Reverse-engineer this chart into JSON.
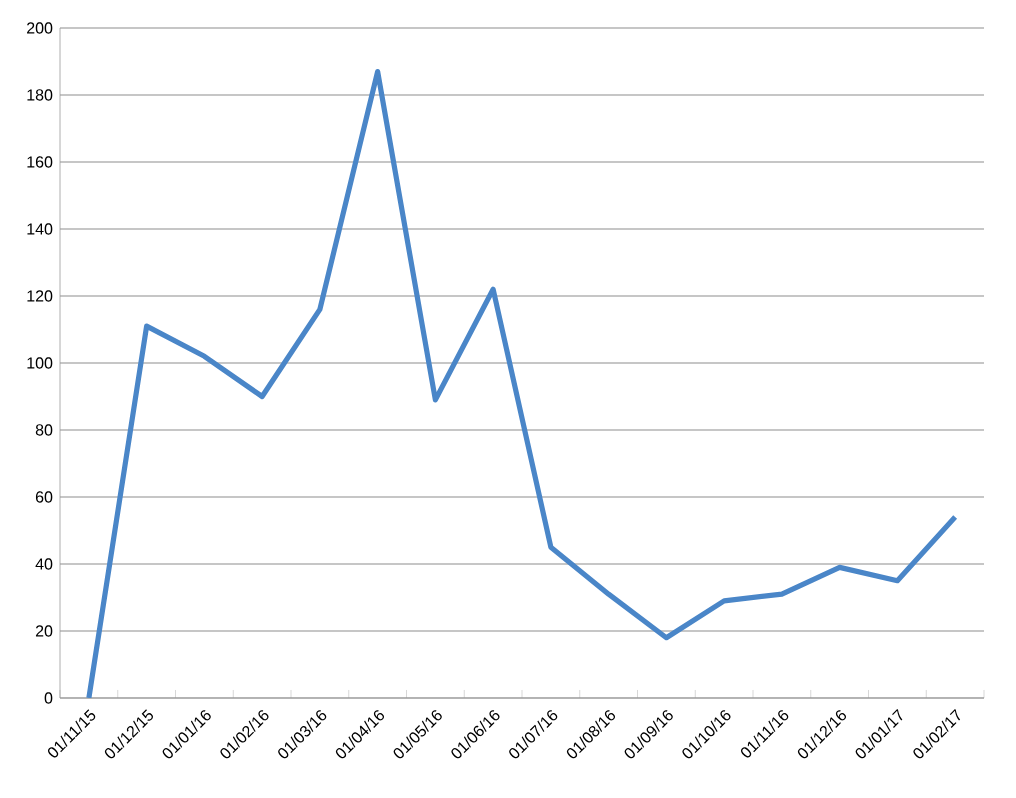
{
  "chart_data": {
    "type": "line",
    "categories": [
      "01/11/15",
      "01/12/15",
      "01/01/16",
      "01/02/16",
      "01/03/16",
      "01/04/16",
      "01/05/16",
      "01/06/16",
      "01/07/16",
      "01/08/16",
      "01/09/16",
      "01/10/16",
      "01/11/16",
      "01/12/16",
      "01/01/17",
      "01/02/17"
    ],
    "series": [
      {
        "color": "#4a86c8",
        "values": [
          0,
          111,
          102,
          90,
          116,
          187,
          89,
          122,
          45,
          31,
          18,
          29,
          31,
          39,
          35,
          54
        ]
      }
    ],
    "ylim": [
      0,
      200
    ],
    "yticks": [
      0,
      20,
      40,
      60,
      80,
      100,
      120,
      140,
      160,
      180,
      200
    ],
    "grid": "y",
    "marker": "none",
    "line_style": "solid"
  }
}
